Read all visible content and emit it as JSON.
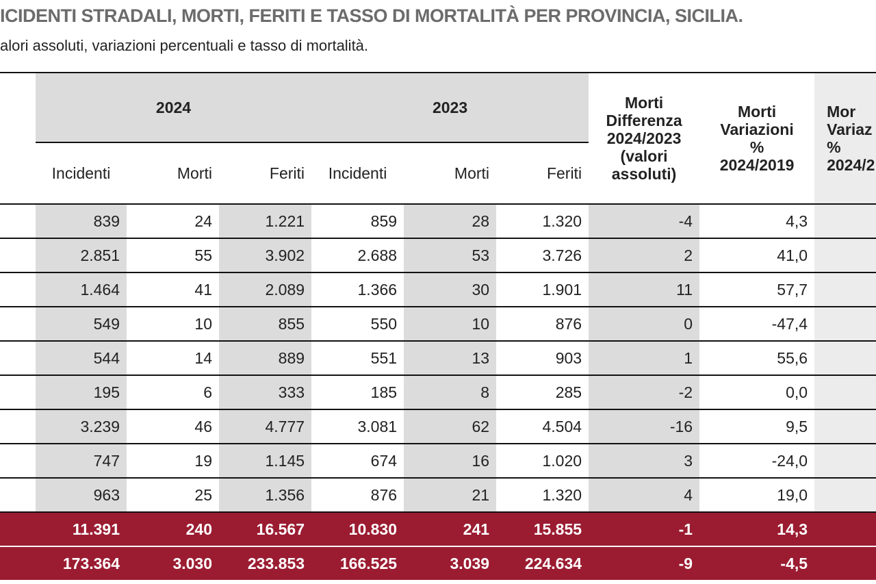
{
  "header": {
    "title": "ICIDENTI STRADALI, MORTI, FERITI E TASSO DI MORTALITÀ PER PROVINCIA, SICILIA.",
    "subtitle": "alori assoluti, variazioni percentuali e tasso di mortalità."
  },
  "table": {
    "groups": [
      "2024",
      "2023"
    ],
    "columns": [
      "Incidenti",
      "Morti",
      "Feriti",
      "Incidenti",
      "Morti",
      "Feriti"
    ],
    "diff_header": [
      "Morti",
      "Differenza",
      "2024/2023",
      "(valori",
      "assoluti)"
    ],
    "var_header": [
      "Morti",
      "Variazioni",
      "%",
      "2024/2019"
    ],
    "last_header": [
      "Mor",
      "Variaz",
      "%",
      "2024/2"
    ],
    "rows": [
      [
        "839",
        "24",
        "1.221",
        "859",
        "28",
        "1.320",
        "-4",
        "4,3"
      ],
      [
        "2.851",
        "55",
        "3.902",
        "2.688",
        "53",
        "3.726",
        "2",
        "41,0"
      ],
      [
        "1.464",
        "41",
        "2.089",
        "1.366",
        "30",
        "1.901",
        "11",
        "57,7"
      ],
      [
        "549",
        "10",
        "855",
        "550",
        "10",
        "876",
        "0",
        "-47,4"
      ],
      [
        "544",
        "14",
        "889",
        "551",
        "13",
        "903",
        "1",
        "55,6"
      ],
      [
        "195",
        "6",
        "333",
        "185",
        "8",
        "285",
        "-2",
        "0,0"
      ],
      [
        "3.239",
        "46",
        "4.777",
        "3.081",
        "62",
        "4.504",
        "-16",
        "9,5"
      ],
      [
        "747",
        "19",
        "1.145",
        "674",
        "16",
        "1.020",
        "3",
        "-24,0"
      ],
      [
        "963",
        "25",
        "1.356",
        "876",
        "21",
        "1.320",
        "4",
        "19,0"
      ]
    ],
    "total_rows": [
      [
        "11.391",
        "240",
        "16.567",
        "10.830",
        "241",
        "15.855",
        "-1",
        "14,3"
      ],
      [
        "173.364",
        "3.030",
        "233.853",
        "166.525",
        "3.039",
        "224.634",
        "-9",
        "-4,5"
      ]
    ]
  }
}
